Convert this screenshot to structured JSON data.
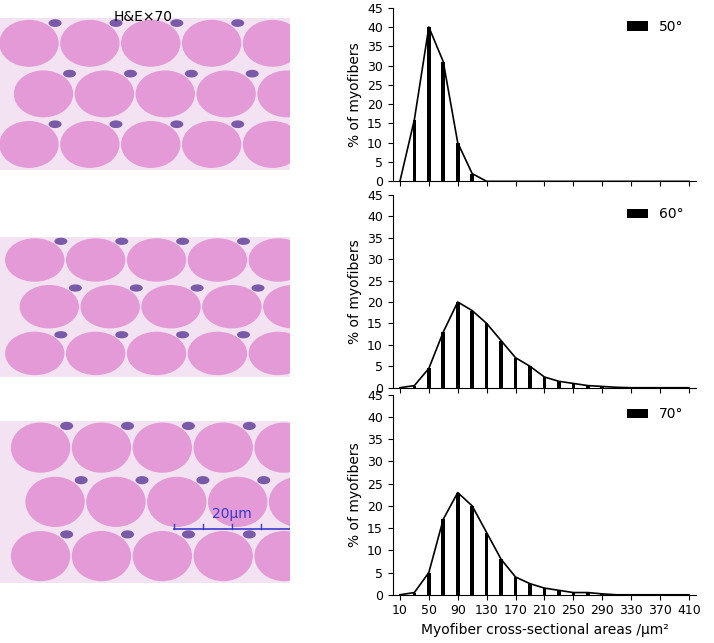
{
  "images": {
    "caption": "H&E×70",
    "scale_bar": "20μm"
  },
  "chart_data": [
    {
      "type": "bar",
      "y_label": "% of myofibers",
      "x": [
        10,
        30,
        50,
        70,
        90,
        110,
        130,
        150,
        170,
        190,
        210,
        230,
        250,
        270,
        290,
        310,
        330,
        350,
        370,
        390,
        410
      ],
      "series": [
        {
          "name": "50°",
          "color": "#000000",
          "values": [
            0,
            16,
            40,
            31,
            10,
            2,
            0,
            0,
            0,
            0,
            0,
            0,
            0,
            0,
            0,
            0,
            0,
            0,
            0,
            0,
            0
          ]
        }
      ],
      "xlim": [
        0,
        420
      ],
      "xticks": [
        10,
        50,
        90,
        130,
        170,
        210,
        250,
        290,
        330,
        370,
        410
      ],
      "ylim": [
        0,
        45
      ],
      "yticks": [
        0,
        5,
        10,
        15,
        20,
        25,
        30,
        35,
        40,
        45
      ],
      "legend": "upper right",
      "tick_labels": "y"
    },
    {
      "type": "bar",
      "y_label": "% of myofibers",
      "x": [
        10,
        30,
        50,
        70,
        90,
        110,
        130,
        150,
        170,
        190,
        210,
        230,
        250,
        270,
        290,
        310,
        330,
        350,
        370,
        390,
        410
      ],
      "series": [
        {
          "name": "60°",
          "color": "#000000",
          "values": [
            0,
            0.5,
            4.5,
            13,
            20,
            18,
            15,
            11,
            7,
            5,
            2.5,
            1.5,
            1,
            0.5,
            0.3,
            0.1,
            0,
            0,
            0,
            0,
            0
          ]
        }
      ],
      "xlim": [
        0,
        420
      ],
      "xticks": [
        10,
        50,
        90,
        130,
        170,
        210,
        250,
        290,
        330,
        370,
        410
      ],
      "ylim": [
        0,
        45
      ],
      "yticks": [
        0,
        5,
        10,
        15,
        20,
        25,
        30,
        35,
        40,
        45
      ],
      "legend": "upper right",
      "tick_labels": "y"
    },
    {
      "type": "bar",
      "y_label": "% of myofibers",
      "x_label": "Myofiber cross-sectional areas /μm²",
      "x": [
        10,
        30,
        50,
        70,
        90,
        110,
        130,
        150,
        170,
        190,
        210,
        230,
        250,
        270,
        290,
        310,
        330,
        350,
        370,
        390,
        410
      ],
      "series": [
        {
          "name": "70°",
          "color": "#000000",
          "values": [
            0,
            0.5,
            5,
            17,
            23,
            20,
            14,
            8,
            4,
            2.5,
            1.5,
            1,
            0.5,
            0.5,
            0.2,
            0,
            0,
            0,
            0,
            0,
            0
          ]
        }
      ],
      "xlim": [
        0,
        420
      ],
      "xticks": [
        10,
        50,
        90,
        130,
        170,
        210,
        250,
        290,
        330,
        370,
        410
      ],
      "ylim": [
        0,
        45
      ],
      "yticks": [
        0,
        5,
        10,
        15,
        20,
        25,
        30,
        35,
        40,
        45
      ],
      "legend": "upper right"
    }
  ]
}
